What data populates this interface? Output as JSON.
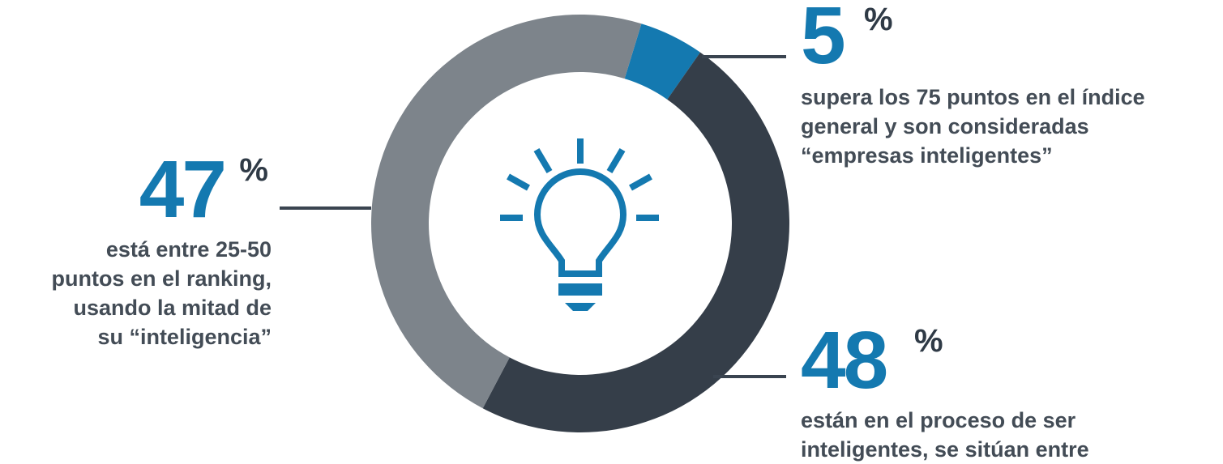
{
  "chart_data": {
    "type": "pie",
    "variant": "donut",
    "slices": [
      {
        "value": 5,
        "color": "#1479b0"
      },
      {
        "value": 48,
        "color": "#353e49"
      },
      {
        "value": 47,
        "color": "#7d848b"
      }
    ],
    "center_icon": "lightbulb-icon",
    "callouts": [
      {
        "value": "5",
        "pct": "%",
        "lines": [
          "supera los 75 puntos en el índice",
          "general y son consideradas",
          "“empresas inteligentes”"
        ]
      },
      {
        "value": "47",
        "pct": "%",
        "lines": [
          "está entre 25-50",
          "puntos en el ranking,",
          "usando la mitad de",
          "su “inteligencia”"
        ]
      },
      {
        "value": "48",
        "pct": "%",
        "lines": [
          "están en el proceso de ser",
          "inteligentes, se sitúan entre"
        ]
      }
    ]
  },
  "colors": {
    "accent": "#1479b0",
    "dark": "#353e49",
    "gray": "#7d848b",
    "text": "#434c56"
  }
}
